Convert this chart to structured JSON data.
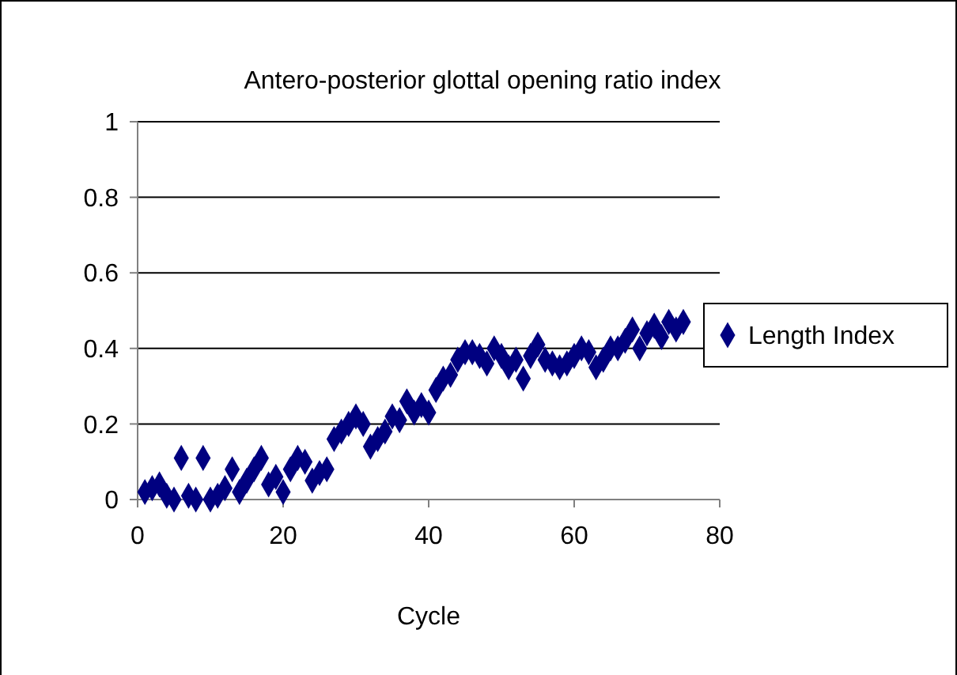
{
  "chart_data": {
    "type": "scatter",
    "title": "Antero-posterior glottal opening ratio index",
    "xlabel": "Cycle",
    "x": [
      1,
      2,
      3,
      4,
      5,
      6,
      7,
      8,
      9,
      10,
      11,
      12,
      13,
      14,
      15,
      16,
      17,
      18,
      19,
      20,
      21,
      22,
      23,
      24,
      25,
      26,
      27,
      28,
      29,
      30,
      31,
      32,
      33,
      34,
      35,
      36,
      37,
      38,
      39,
      40,
      41,
      42,
      43,
      44,
      45,
      46,
      47,
      48,
      49,
      50,
      51,
      52,
      53,
      54,
      55,
      56,
      57,
      58,
      59,
      60,
      61,
      62,
      63,
      64,
      65,
      66,
      67,
      68,
      69,
      70,
      71,
      72,
      73,
      74,
      75
    ],
    "series": [
      {
        "name": "Length Index",
        "color": "#000080",
        "values": [
          0.02,
          0.03,
          0.04,
          0.01,
          0.0,
          0.11,
          0.01,
          0.0,
          0.11,
          0.0,
          0.01,
          0.03,
          0.08,
          0.02,
          0.05,
          0.08,
          0.11,
          0.04,
          0.06,
          0.02,
          0.08,
          0.11,
          0.1,
          0.05,
          0.07,
          0.08,
          0.16,
          0.18,
          0.2,
          0.22,
          0.2,
          0.14,
          0.16,
          0.18,
          0.22,
          0.21,
          0.26,
          0.23,
          0.25,
          0.23,
          0.29,
          0.32,
          0.33,
          0.37,
          0.39,
          0.39,
          0.38,
          0.36,
          0.4,
          0.38,
          0.35,
          0.37,
          0.32,
          0.38,
          0.41,
          0.37,
          0.36,
          0.35,
          0.36,
          0.38,
          0.4,
          0.39,
          0.35,
          0.37,
          0.4,
          0.4,
          0.42,
          0.45,
          0.4,
          0.44,
          0.46,
          0.43,
          0.47,
          0.45,
          0.47
        ]
      }
    ],
    "xlim": [
      0,
      80
    ],
    "xticks": [
      0,
      20,
      40,
      60,
      80
    ],
    "ylim": [
      0,
      1
    ],
    "yticks": [
      0,
      0.2,
      0.4,
      0.6,
      0.8,
      1
    ],
    "grid": "y",
    "legend": "right",
    "marker": "diamond"
  }
}
